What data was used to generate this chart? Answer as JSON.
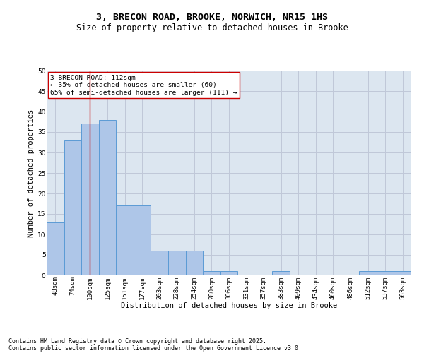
{
  "title_line1": "3, BRECON ROAD, BROOKE, NORWICH, NR15 1HS",
  "title_line2": "Size of property relative to detached houses in Brooke",
  "xlabel": "Distribution of detached houses by size in Brooke",
  "ylabel": "Number of detached properties",
  "categories": [
    "48sqm",
    "74sqm",
    "100sqm",
    "125sqm",
    "151sqm",
    "177sqm",
    "203sqm",
    "228sqm",
    "254sqm",
    "280sqm",
    "306sqm",
    "331sqm",
    "357sqm",
    "383sqm",
    "409sqm",
    "434sqm",
    "460sqm",
    "486sqm",
    "512sqm",
    "537sqm",
    "563sqm"
  ],
  "values": [
    13,
    33,
    37,
    38,
    17,
    17,
    6,
    6,
    6,
    1,
    1,
    0,
    0,
    1,
    0,
    0,
    0,
    0,
    1,
    1,
    1
  ],
  "bar_color": "#aec6e8",
  "bar_edge_color": "#5b9bd5",
  "bar_width": 1.0,
  "ylim": [
    0,
    50
  ],
  "yticks": [
    0,
    5,
    10,
    15,
    20,
    25,
    30,
    35,
    40,
    45,
    50
  ],
  "vline_x": 2.0,
  "vline_color": "#cc0000",
  "annotation_text": "3 BRECON ROAD: 112sqm\n← 35% of detached houses are smaller (60)\n65% of semi-detached houses are larger (111) →",
  "annotation_box_color": "#ffffff",
  "annotation_edge_color": "#cc0000",
  "grid_color": "#c0c8d8",
  "background_color": "#dce6f0",
  "footnote1": "Contains HM Land Registry data © Crown copyright and database right 2025.",
  "footnote2": "Contains public sector information licensed under the Open Government Licence v3.0.",
  "title_fontsize": 9.5,
  "subtitle_fontsize": 8.5,
  "axis_label_fontsize": 7.5,
  "tick_fontsize": 6.5,
  "annotation_fontsize": 6.8,
  "footnote_fontsize": 6.0
}
